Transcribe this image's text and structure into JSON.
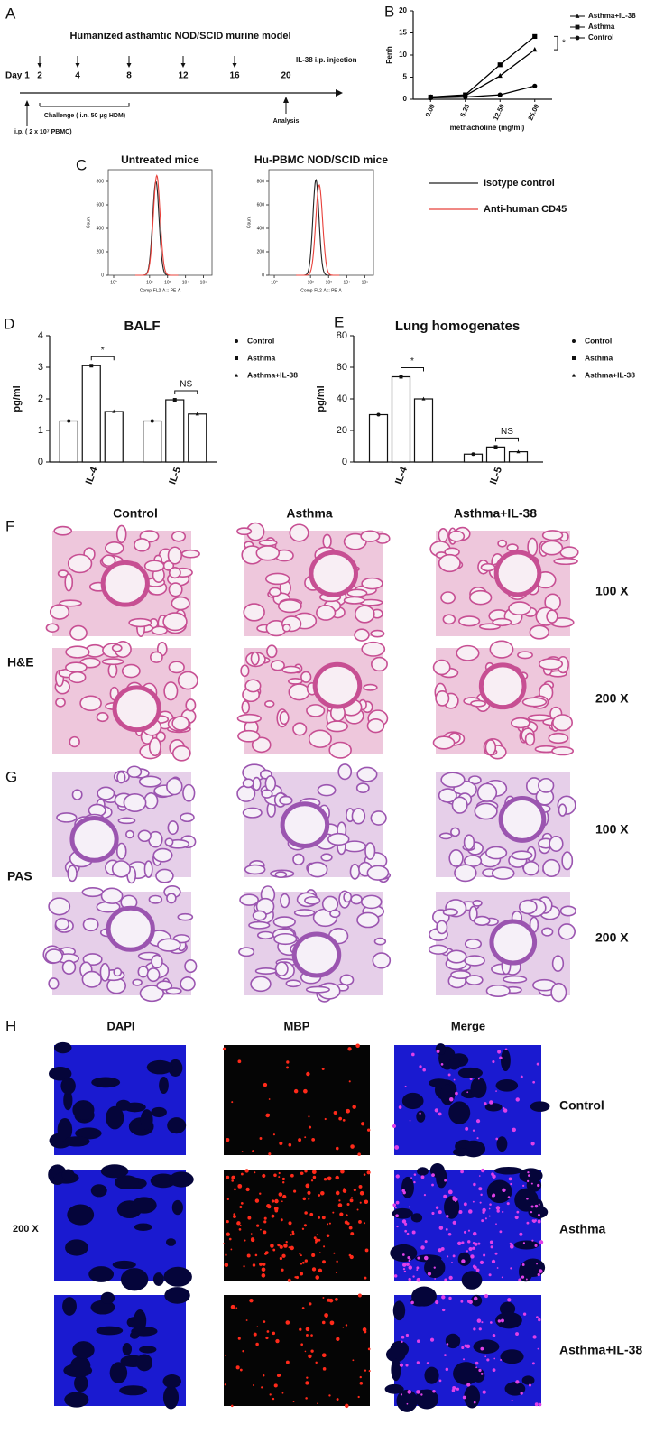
{
  "panel_labels": [
    "A",
    "B",
    "C",
    "D",
    "E",
    "F",
    "G",
    "H"
  ],
  "timeline": {
    "title": "Humanized asthamtic NOD/SCID murine model",
    "day_label": "Day",
    "days": [
      1,
      2,
      4,
      8,
      12,
      16,
      20
    ],
    "injection": "IL-38 i.p. injection",
    "challenge": "Challenge ( i.n. 50 μg HDM)",
    "pbmc": "i.p. ( 2 x 10⁷ PBMC)",
    "analysis": "Analysis"
  },
  "chart_data": [
    {
      "type": "line",
      "ylabel": "Penh",
      "xlabel": "methacholine (mg/ml)",
      "categories": [
        "0.00",
        "6.25",
        "12.50",
        "25.00"
      ],
      "ylim": [
        0,
        20
      ],
      "yticks": [
        0,
        5,
        10,
        15,
        20
      ],
      "legend": "right",
      "annotation": "*",
      "series": [
        {
          "name": "Asthma+IL-38",
          "marker": "triangle",
          "color": "#000000",
          "values": [
            0.5,
            0.8,
            5.3,
            11.2
          ]
        },
        {
          "name": "Asthma",
          "marker": "square",
          "color": "#000000",
          "values": [
            0.5,
            1.0,
            7.8,
            14.2
          ]
        },
        {
          "name": "Control",
          "marker": "circle",
          "color": "#000000",
          "values": [
            0.3,
            0.5,
            1.0,
            3.0
          ]
        }
      ]
    },
    {
      "type": "bar",
      "title": "BALF",
      "ylabel": "pg/ml",
      "categories": [
        "IL-4",
        "IL-5"
      ],
      "ylim": [
        0,
        4
      ],
      "yticks": [
        0,
        1,
        2,
        3,
        4
      ],
      "legend": "right",
      "annotations": [
        "*",
        "NS"
      ],
      "series": [
        {
          "name": "Control",
          "marker": "circle",
          "color": "#ffffff",
          "values": [
            1.3,
            1.3
          ]
        },
        {
          "name": "Asthma",
          "marker": "square",
          "color": "#ffffff",
          "values": [
            3.05,
            1.97
          ]
        },
        {
          "name": "Asthma+IL-38",
          "marker": "triangle",
          "color": "#ffffff",
          "values": [
            1.6,
            1.52
          ]
        }
      ]
    },
    {
      "type": "bar",
      "title": "Lung homogenates",
      "ylabel": "pg/ml",
      "categories": [
        "IL-4",
        "IL-5"
      ],
      "ylim": [
        0,
        80
      ],
      "yticks": [
        0,
        20,
        40,
        60,
        80
      ],
      "legend": "right",
      "annotations": [
        "*",
        "NS"
      ],
      "series": [
        {
          "name": "Control",
          "marker": "circle",
          "color": "#ffffff",
          "values": [
            30,
            5
          ]
        },
        {
          "name": "Asthma",
          "marker": "square",
          "color": "#ffffff",
          "values": [
            54,
            9.5
          ]
        },
        {
          "name": "Asthma+IL-38",
          "marker": "triangle",
          "color": "#ffffff",
          "values": [
            40,
            6.5
          ]
        }
      ]
    }
  ],
  "flow": {
    "titles": [
      "Untreated mice",
      "Hu-PBMC NOD/SCID mice"
    ],
    "ylabel": "Count",
    "xlabel": "Comp-FL2-A :: PE-A",
    "ylim": [
      0,
      900
    ],
    "yticks": [
      0,
      200,
      400,
      600,
      800
    ],
    "xlim": [
      0.5,
      300000
    ],
    "log_x": true,
    "xticks": [
      {
        "value": 1,
        "label": "10⁰"
      },
      {
        "value": 100,
        "label": "10²"
      },
      {
        "value": 1000,
        "label": "10³"
      },
      {
        "value": 10000,
        "label": "10⁴"
      },
      {
        "value": 100000,
        "label": "10⁵"
      }
    ],
    "legend": [
      {
        "name": "Isotype control",
        "color": "#222222"
      },
      {
        "name": "Anti-human CD45",
        "color": "#e8403a"
      }
    ]
  },
  "histology": {
    "columns": [
      "Control",
      "Asthma",
      "Asthma+IL-38"
    ],
    "stains": [
      "H&E",
      "PAS"
    ],
    "magnifications": [
      "100 X",
      "200 X",
      "100 X",
      "200 X"
    ]
  },
  "fluorescence": {
    "columns": [
      "DAPI",
      "MBP",
      "Merge"
    ],
    "rows": [
      "Control",
      "Asthma",
      "Asthma+IL-38"
    ],
    "magnification": "200 X"
  }
}
